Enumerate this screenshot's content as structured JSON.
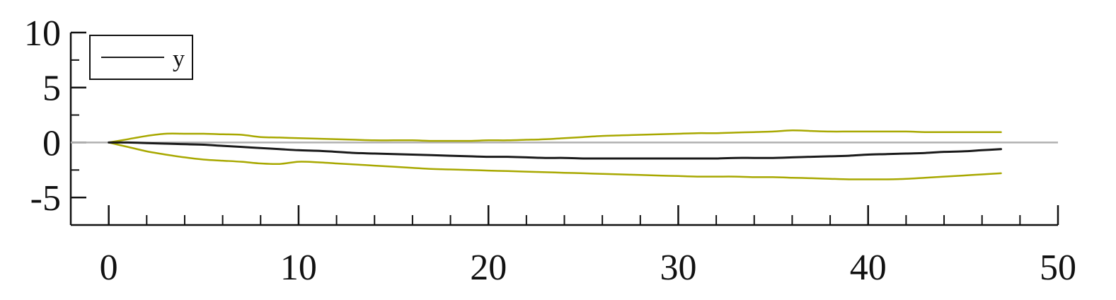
{
  "chart_data": {
    "type": "line",
    "title": "",
    "xlabel": "",
    "ylabel": "",
    "xlim": [
      -2,
      50
    ],
    "ylim": [
      -7.5,
      10
    ],
    "x_ticks": [
      0,
      10,
      20,
      30,
      40,
      50
    ],
    "x_tick_labels": [
      "0",
      "10",
      "20",
      "30",
      "40",
      "50"
    ],
    "y_ticks": [
      -5,
      0,
      5,
      10
    ],
    "y_tick_labels": [
      "-5",
      "0",
      "5",
      "10"
    ],
    "x_minor_step": 2,
    "y_minor_step": 2.5,
    "grid": false,
    "legend": {
      "position": "top-left",
      "entries": [
        "y"
      ]
    },
    "reference_line": {
      "y": 0,
      "color": "#b0b0b0"
    },
    "x": [
      0,
      1,
      2,
      3,
      4,
      5,
      6,
      7,
      8,
      9,
      10,
      11,
      12,
      13,
      14,
      15,
      16,
      17,
      18,
      19,
      20,
      21,
      22,
      23,
      24,
      25,
      26,
      27,
      28,
      29,
      30,
      31,
      32,
      33,
      34,
      35,
      36,
      37,
      38,
      39,
      40,
      41,
      42,
      43,
      44,
      45,
      46,
      47
    ],
    "series": [
      {
        "name": "y",
        "role": "estimate",
        "color": "#1a1a1a",
        "values": [
          0,
          0,
          -0.05,
          -0.1,
          -0.15,
          -0.2,
          -0.3,
          -0.4,
          -0.5,
          -0.6,
          -0.7,
          -0.75,
          -0.85,
          -0.95,
          -1.0,
          -1.05,
          -1.1,
          -1.15,
          -1.2,
          -1.25,
          -1.3,
          -1.3,
          -1.35,
          -1.4,
          -1.4,
          -1.45,
          -1.45,
          -1.45,
          -1.45,
          -1.45,
          -1.45,
          -1.45,
          -1.45,
          -1.4,
          -1.4,
          -1.4,
          -1.35,
          -1.3,
          -1.25,
          -1.2,
          -1.1,
          -1.05,
          -1.0,
          -0.95,
          -0.85,
          -0.8,
          -0.7,
          -0.6
        ]
      },
      {
        "role": "upper-band",
        "color": "#a8a800",
        "values": [
          0,
          0.3,
          0.6,
          0.8,
          0.8,
          0.8,
          0.75,
          0.7,
          0.5,
          0.45,
          0.4,
          0.35,
          0.3,
          0.25,
          0.2,
          0.2,
          0.2,
          0.15,
          0.15,
          0.15,
          0.2,
          0.2,
          0.25,
          0.3,
          0.4,
          0.5,
          0.6,
          0.65,
          0.7,
          0.75,
          0.8,
          0.85,
          0.85,
          0.9,
          0.95,
          1.0,
          1.1,
          1.05,
          1.0,
          1.0,
          1.0,
          1.0,
          1.0,
          0.95,
          0.95,
          0.95,
          0.95,
          0.95
        ]
      },
      {
        "role": "lower-band",
        "color": "#a8a800",
        "values": [
          0,
          -0.4,
          -0.8,
          -1.1,
          -1.35,
          -1.55,
          -1.65,
          -1.75,
          -1.9,
          -1.95,
          -1.75,
          -1.8,
          -1.9,
          -2.0,
          -2.1,
          -2.2,
          -2.3,
          -2.4,
          -2.45,
          -2.5,
          -2.55,
          -2.6,
          -2.65,
          -2.7,
          -2.75,
          -2.8,
          -2.85,
          -2.9,
          -2.95,
          -3.0,
          -3.05,
          -3.1,
          -3.1,
          -3.1,
          -3.15,
          -3.15,
          -3.2,
          -3.25,
          -3.3,
          -3.35,
          -3.35,
          -3.35,
          -3.3,
          -3.2,
          -3.1,
          -3.0,
          -2.9,
          -2.8
        ]
      }
    ]
  }
}
